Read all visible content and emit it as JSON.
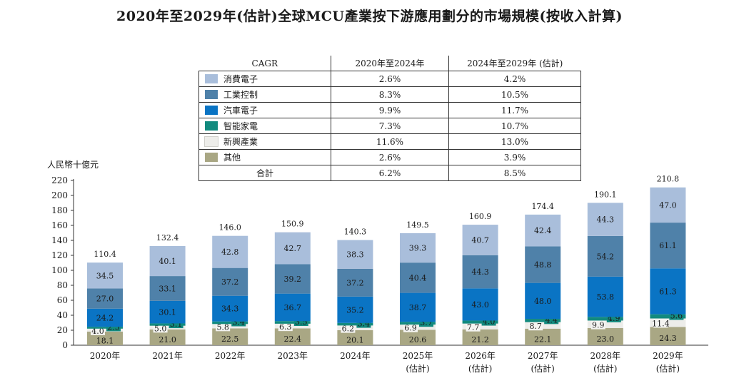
{
  "title": "2020年至2029年(估計)全球MCU產業按下游應用劃分的市場規模(按收入計算)",
  "ylabel": "人民幣十億元",
  "cagr_table": {
    "header": [
      "CAGR",
      "2020年至2024年",
      "2024年至2029年 (估計)"
    ],
    "rows": [
      {
        "label": "消費電子",
        "c1": "2.6%",
        "c2": "4.2%",
        "color": "#a9bedb"
      },
      {
        "label": "工業控制",
        "c1": "8.3%",
        "c2": "10.5%",
        "color": "#4f81a9"
      },
      {
        "label": "汽車電子",
        "c1": "9.9%",
        "c2": "11.7%",
        "color": "#0a74c4"
      },
      {
        "label": "智能家電",
        "c1": "7.3%",
        "c2": "10.7%",
        "color": "#128a7e"
      },
      {
        "label": "新興產業",
        "c1": "11.6%",
        "c2": "13.0%",
        "color": "#ededea"
      },
      {
        "label": "其他",
        "c1": "2.6%",
        "c2": "3.9%",
        "color": "#a9a784"
      }
    ],
    "total": {
      "label": "合計",
      "c1": "6.2%",
      "c2": "8.5%"
    }
  },
  "chart_data": {
    "type": "bar",
    "stacked": true,
    "categories": [
      "2020年",
      "2021年",
      "2022年",
      "2023年",
      "2024年",
      "2025年\n(估計)",
      "2026年\n(估計)",
      "2027年\n(估計)",
      "2028年\n(估計)",
      "2029年\n(估計)"
    ],
    "ylim": [
      0,
      220
    ],
    "yticks": [
      0,
      20,
      40,
      60,
      80,
      100,
      120,
      140,
      160,
      180,
      200,
      220
    ],
    "ylabel": "人民幣十億元",
    "totals": [
      110.4,
      132.4,
      146.0,
      150.9,
      140.3,
      149.5,
      160.9,
      174.4,
      190.1,
      210.8
    ],
    "series": [
      {
        "name": "其他",
        "color": "#a9a784",
        "values": [
          18.1,
          21.0,
          22.5,
          22.4,
          20.1,
          20.6,
          21.2,
          22.1,
          23.0,
          24.3
        ]
      },
      {
        "name": "新興產業",
        "color": "#ededea",
        "values": [
          4.0,
          5.0,
          5.8,
          6.3,
          6.2,
          6.9,
          7.7,
          8.7,
          9.9,
          11.4
        ]
      },
      {
        "name": "智能家電",
        "color": "#128a7e",
        "values": [
          2.5,
          3.1,
          3.4,
          3.5,
          3.4,
          3.7,
          4.0,
          4.4,
          4.9,
          5.6
        ]
      },
      {
        "name": "汽車電子",
        "color": "#0a74c4",
        "values": [
          24.2,
          30.1,
          34.3,
          36.7,
          35.2,
          38.7,
          43.0,
          48.0,
          53.8,
          61.3
        ]
      },
      {
        "name": "工業控制",
        "color": "#4f81a9",
        "values": [
          27.0,
          33.1,
          37.2,
          39.2,
          37.2,
          40.4,
          44.3,
          48.8,
          54.2,
          61.1
        ]
      },
      {
        "name": "消費電子",
        "color": "#a9bedb",
        "values": [
          34.5,
          40.1,
          42.8,
          42.7,
          38.3,
          39.3,
          40.7,
          42.4,
          44.3,
          47.0
        ]
      }
    ],
    "legend": "table-top"
  }
}
